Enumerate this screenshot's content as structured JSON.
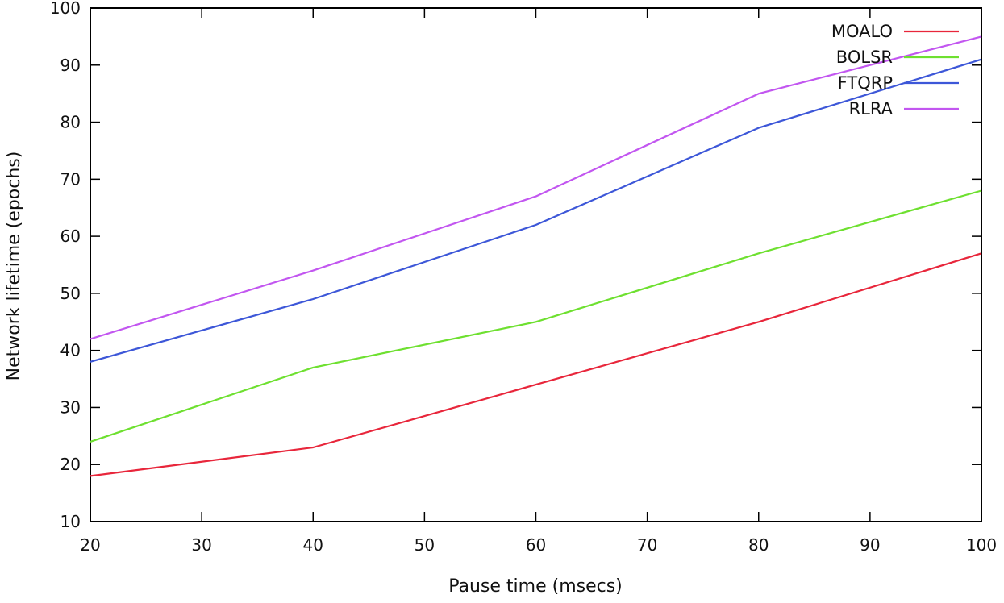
{
  "chart_data": {
    "type": "line",
    "title": "",
    "xlabel": "Pause time (msecs)",
    "ylabel": "Network lifetime (epochs)",
    "xlim": [
      20,
      100
    ],
    "ylim": [
      10,
      100
    ],
    "x_ticks": [
      20,
      30,
      40,
      50,
      60,
      70,
      80,
      90,
      100
    ],
    "y_ticks": [
      10,
      20,
      30,
      40,
      50,
      60,
      70,
      80,
      90,
      100
    ],
    "grid": false,
    "legend_position": "top-right",
    "series": [
      {
        "name": "MOALO",
        "color": "#e8263b",
        "x": [
          20,
          40,
          60,
          80,
          100
        ],
        "y": [
          18,
          23,
          34,
          45,
          57
        ]
      },
      {
        "name": "BOLSR",
        "color": "#6ee030",
        "x": [
          20,
          40,
          60,
          80,
          100
        ],
        "y": [
          24,
          37,
          45,
          57,
          68
        ]
      },
      {
        "name": "FTQRP",
        "color": "#3d57d8",
        "x": [
          20,
          40,
          60,
          80,
          100
        ],
        "y": [
          38,
          49,
          62,
          79,
          91
        ]
      },
      {
        "name": "RLRA",
        "color": "#c256f0",
        "x": [
          20,
          40,
          60,
          80,
          100
        ],
        "y": [
          42,
          54,
          67,
          85,
          95
        ]
      }
    ]
  }
}
